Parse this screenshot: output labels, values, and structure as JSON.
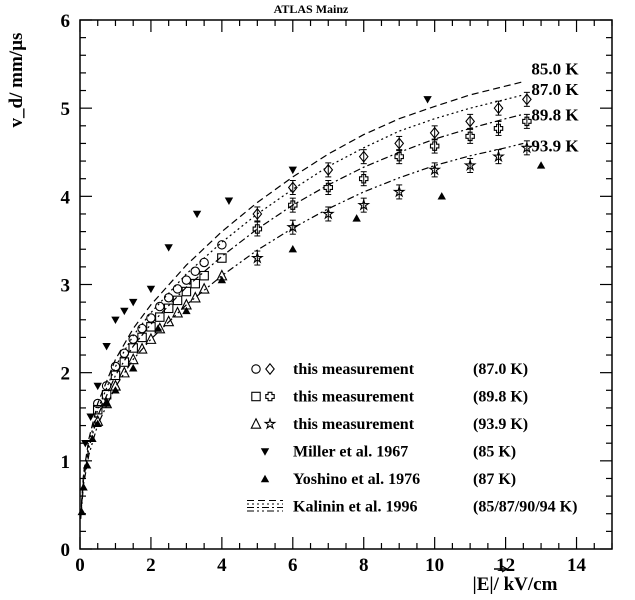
{
  "chart_data": {
    "type": "scatter",
    "title": "ATLAS Mainz",
    "ylabel": "v_d/ mm/µs",
    "xlabel": "|E|/ kV/cm",
    "xlim": [
      0,
      15
    ],
    "ylim": [
      0,
      6
    ],
    "x_ticks": [
      "0",
      "2",
      "4",
      "6",
      "8",
      "10",
      "12",
      "14"
    ],
    "y_ticks": [
      "0",
      "1",
      "2",
      "3",
      "4",
      "5",
      "6"
    ],
    "grid": false,
    "legend_position": "bottom-right",
    "fit_curves": [
      {
        "label": "85.0 K",
        "style": "dashed",
        "x": [
          0.02,
          0.1,
          0.25,
          0.5,
          1,
          1.5,
          2,
          3,
          4,
          5,
          6,
          7,
          8,
          9,
          10,
          11,
          12,
          12.5
        ],
        "y": [
          0.38,
          0.85,
          1.25,
          1.65,
          2.15,
          2.5,
          2.77,
          3.22,
          3.6,
          3.93,
          4.22,
          4.48,
          4.7,
          4.88,
          5.02,
          5.15,
          5.25,
          5.3
        ]
      },
      {
        "label": "87.0 K",
        "style": "dotted",
        "x": [
          0.02,
          0.1,
          0.25,
          0.5,
          1,
          1.5,
          2,
          3,
          4,
          5,
          6,
          7,
          8,
          9,
          10,
          11,
          12,
          12.5
        ],
        "y": [
          0.37,
          0.82,
          1.2,
          1.58,
          2.07,
          2.42,
          2.68,
          3.12,
          3.48,
          3.8,
          4.08,
          4.34,
          4.55,
          4.74,
          4.88,
          5.0,
          5.1,
          5.15
        ]
      },
      {
        "label": "89.8 K",
        "style": "dash-dot",
        "x": [
          0.02,
          0.1,
          0.25,
          0.5,
          1,
          1.5,
          2,
          3,
          4,
          5,
          6,
          7,
          8,
          9,
          10,
          11,
          12,
          12.5
        ],
        "y": [
          0.36,
          0.78,
          1.15,
          1.51,
          1.97,
          2.3,
          2.55,
          2.97,
          3.32,
          3.63,
          3.9,
          4.13,
          4.33,
          4.5,
          4.65,
          4.77,
          4.88,
          4.93
        ]
      },
      {
        "label": "93.9 K",
        "style": "dash-dot-dot",
        "x": [
          0.02,
          0.1,
          0.25,
          0.5,
          1,
          1.5,
          2,
          3,
          4,
          5,
          6,
          7,
          8,
          9,
          10,
          11,
          12,
          12.5
        ],
        "y": [
          0.34,
          0.73,
          1.07,
          1.41,
          1.84,
          2.15,
          2.38,
          2.77,
          3.1,
          3.39,
          3.64,
          3.86,
          4.05,
          4.21,
          4.35,
          4.46,
          4.55,
          4.6
        ]
      }
    ],
    "series": [
      {
        "marker": "circle",
        "x": [
          0.5,
          0.75,
          1.0,
          1.25,
          1.5,
          1.75,
          2.0,
          2.25,
          2.5,
          2.75,
          3.0,
          3.25,
          3.5,
          4.0
        ],
        "y": [
          1.65,
          1.85,
          2.07,
          2.22,
          2.38,
          2.5,
          2.62,
          2.75,
          2.85,
          2.95,
          3.05,
          3.15,
          3.25,
          3.45
        ]
      },
      {
        "marker": "diamond",
        "x": [
          5.0,
          6.0,
          7.0,
          8.0,
          9.0,
          10.0,
          11.0,
          11.8,
          12.6
        ],
        "y": [
          3.8,
          4.1,
          4.3,
          4.45,
          4.6,
          4.72,
          4.85,
          5.0,
          5.1
        ]
      },
      {
        "marker": "square",
        "x": [
          0.5,
          0.75,
          1.0,
          1.25,
          1.5,
          1.75,
          2.0,
          2.25,
          2.5,
          2.75,
          3.0,
          3.25,
          3.5,
          4.0
        ],
        "y": [
          1.58,
          1.75,
          1.97,
          2.12,
          2.28,
          2.4,
          2.52,
          2.63,
          2.73,
          2.82,
          2.92,
          3.01,
          3.1,
          3.3
        ]
      },
      {
        "marker": "cross",
        "x": [
          5.0,
          6.0,
          7.0,
          8.0,
          9.0,
          10.0,
          11.0,
          11.8,
          12.6
        ],
        "y": [
          3.63,
          3.9,
          4.1,
          4.2,
          4.45,
          4.57,
          4.68,
          4.77,
          4.85
        ]
      },
      {
        "marker": "triangle-open",
        "x": [
          0.5,
          0.75,
          1.0,
          1.25,
          1.5,
          1.75,
          2.0,
          2.25,
          2.5,
          2.75,
          3.0,
          3.25,
          3.5,
          4.0
        ],
        "y": [
          1.45,
          1.65,
          1.85,
          2.0,
          2.15,
          2.27,
          2.38,
          2.5,
          2.58,
          2.68,
          2.77,
          2.85,
          2.95,
          3.1
        ]
      },
      {
        "marker": "star",
        "x": [
          5.0,
          6.0,
          7.0,
          8.0,
          9.0,
          10.0,
          11.0,
          11.8,
          12.6
        ],
        "y": [
          3.3,
          3.65,
          3.8,
          3.9,
          4.05,
          4.3,
          4.35,
          4.45,
          4.55
        ]
      },
      {
        "marker": "triangle-down-filled",
        "x": [
          0.15,
          0.3,
          0.5,
          0.75,
          1.0,
          1.25,
          1.5,
          2.0,
          2.5,
          3.3,
          4.2,
          6.0,
          9.8
        ],
        "y": [
          1.2,
          1.5,
          1.85,
          2.3,
          2.6,
          2.7,
          2.8,
          2.95,
          3.42,
          3.8,
          3.95,
          4.3,
          5.1
        ]
      },
      {
        "marker": "triangle-up-filled",
        "x": [
          0.05,
          0.1,
          0.2,
          0.35,
          0.5,
          0.75,
          1.0,
          1.5,
          2.2,
          3.0,
          4.0,
          6.0,
          7.8,
          10.2,
          13.0
        ],
        "y": [
          0.42,
          0.7,
          0.95,
          1.25,
          1.42,
          1.65,
          1.8,
          2.05,
          2.5,
          2.7,
          3.05,
          3.4,
          3.75,
          4.0,
          4.35
        ]
      }
    ],
    "legend": [
      {
        "symbols": [
          "circle",
          "diamond"
        ],
        "label": "this measurement",
        "value": "(87.0 K)"
      },
      {
        "symbols": [
          "square",
          "cross"
        ],
        "label": "this measurement",
        "value": "(89.8 K)"
      },
      {
        "symbols": [
          "triangle-open",
          "star"
        ],
        "label": "this measurement",
        "value": "(93.9 K)"
      },
      {
        "symbols": [
          "triangle-down-filled"
        ],
        "label": "Miller et al. 1967",
        "value": "(85 K)"
      },
      {
        "symbols": [
          "triangle-up-filled"
        ],
        "label": "Yoshino et al. 1976",
        "value": "(87 K)"
      },
      {
        "symbols": [
          "curve-lines"
        ],
        "label": "Kalinin et al. 1996",
        "value": "(85/87/90/94 K)"
      }
    ]
  }
}
